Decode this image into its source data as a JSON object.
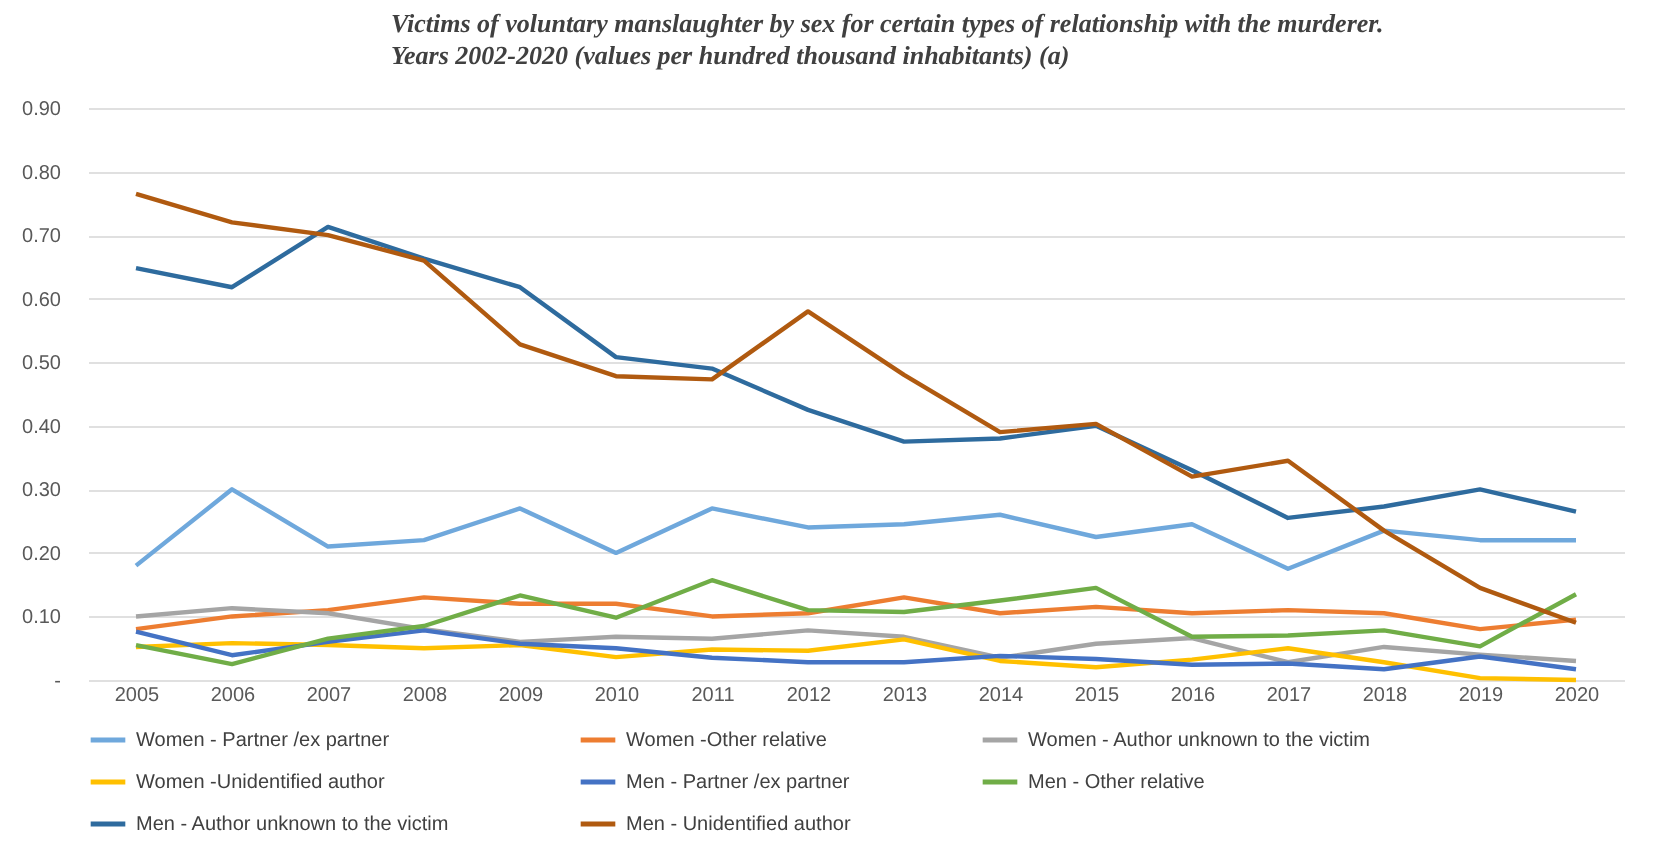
{
  "chart_data": {
    "type": "line",
    "title": "Victims of voluntary manslaughter by sex for certain types of relationship with the murderer.",
    "subtitle": "Years 2002-2020 (values per hundred thousand inhabitants) (a)",
    "categories": [
      "2005",
      "2006",
      "2007",
      "2008",
      "2009",
      "2010",
      "2011",
      "2012",
      "2013",
      "2014",
      "2015",
      "2016",
      "2017",
      "2018",
      "2019",
      "2020"
    ],
    "ylim": [
      0,
      0.9
    ],
    "yticks": [
      {
        "value": 0,
        "label": "-"
      },
      {
        "value": 0.1,
        "label": "0.10"
      },
      {
        "value": 0.2,
        "label": "0.20"
      },
      {
        "value": 0.3,
        "label": "0.30"
      },
      {
        "value": 0.4,
        "label": "0.40"
      },
      {
        "value": 0.5,
        "label": "0.50"
      },
      {
        "value": 0.6,
        "label": "0.60"
      },
      {
        "value": 0.7,
        "label": "0.70"
      },
      {
        "value": 0.8,
        "label": "0.80"
      },
      {
        "value": 0.9,
        "label": "0.90"
      }
    ],
    "grid": "y",
    "legend": "bottom",
    "series": [
      {
        "name": "Women - Partner /ex partner",
        "color": "#6fa8dc",
        "values": [
          0.18,
          0.3,
          0.21,
          0.22,
          0.27,
          0.2,
          0.27,
          0.24,
          0.245,
          0.26,
          0.225,
          0.245,
          0.175,
          0.235,
          0.22,
          0.22
        ]
      },
      {
        "name": "Women -Other relative",
        "color": "#ed7d31",
        "values": [
          0.08,
          0.1,
          0.11,
          0.13,
          0.12,
          0.12,
          0.1,
          0.105,
          0.13,
          0.105,
          0.115,
          0.105,
          0.11,
          0.105,
          0.08,
          0.095
        ]
      },
      {
        "name": "Women - Author unknown to the victim",
        "color": "#a5a5a5",
        "values": [
          0.1,
          0.113,
          0.105,
          0.08,
          0.06,
          0.068,
          0.065,
          0.078,
          0.068,
          0.035,
          0.057,
          0.066,
          0.028,
          0.052,
          0.04,
          0.03
        ]
      },
      {
        "name": "Women -Unidentified author",
        "color": "#ffc000",
        "values": [
          0.052,
          0.058,
          0.055,
          0.05,
          0.055,
          0.036,
          0.048,
          0.046,
          0.064,
          0.03,
          0.02,
          0.032,
          0.05,
          0.028,
          0.003,
          0.0
        ]
      },
      {
        "name": "Men - Partner /ex partner",
        "color": "#4472c4",
        "values": [
          0.076,
          0.039,
          0.06,
          0.078,
          0.057,
          0.05,
          0.035,
          0.028,
          0.028,
          0.038,
          0.033,
          0.024,
          0.026,
          0.017,
          0.037,
          0.017
        ]
      },
      {
        "name": "Men - Other relative",
        "color": "#70ad47",
        "values": [
          0.055,
          0.025,
          0.065,
          0.085,
          0.133,
          0.098,
          0.157,
          0.11,
          0.107,
          0.125,
          0.145,
          0.068,
          0.07,
          0.078,
          0.053,
          0.135
        ]
      },
      {
        "name": "Men - Author unknown to the victim",
        "color": "#2e6b9e",
        "values": [
          0.648,
          0.618,
          0.713,
          0.663,
          0.618,
          0.508,
          0.49,
          0.425,
          0.375,
          0.38,
          0.4,
          0.33,
          0.255,
          0.273,
          0.3,
          0.265
        ]
      },
      {
        "name": "Men - Unidentified author",
        "color": "#b05a10",
        "values": [
          0.765,
          0.72,
          0.7,
          0.66,
          0.528,
          0.478,
          0.473,
          0.58,
          0.48,
          0.39,
          0.403,
          0.32,
          0.345,
          0.235,
          0.145,
          0.09
        ]
      }
    ]
  }
}
